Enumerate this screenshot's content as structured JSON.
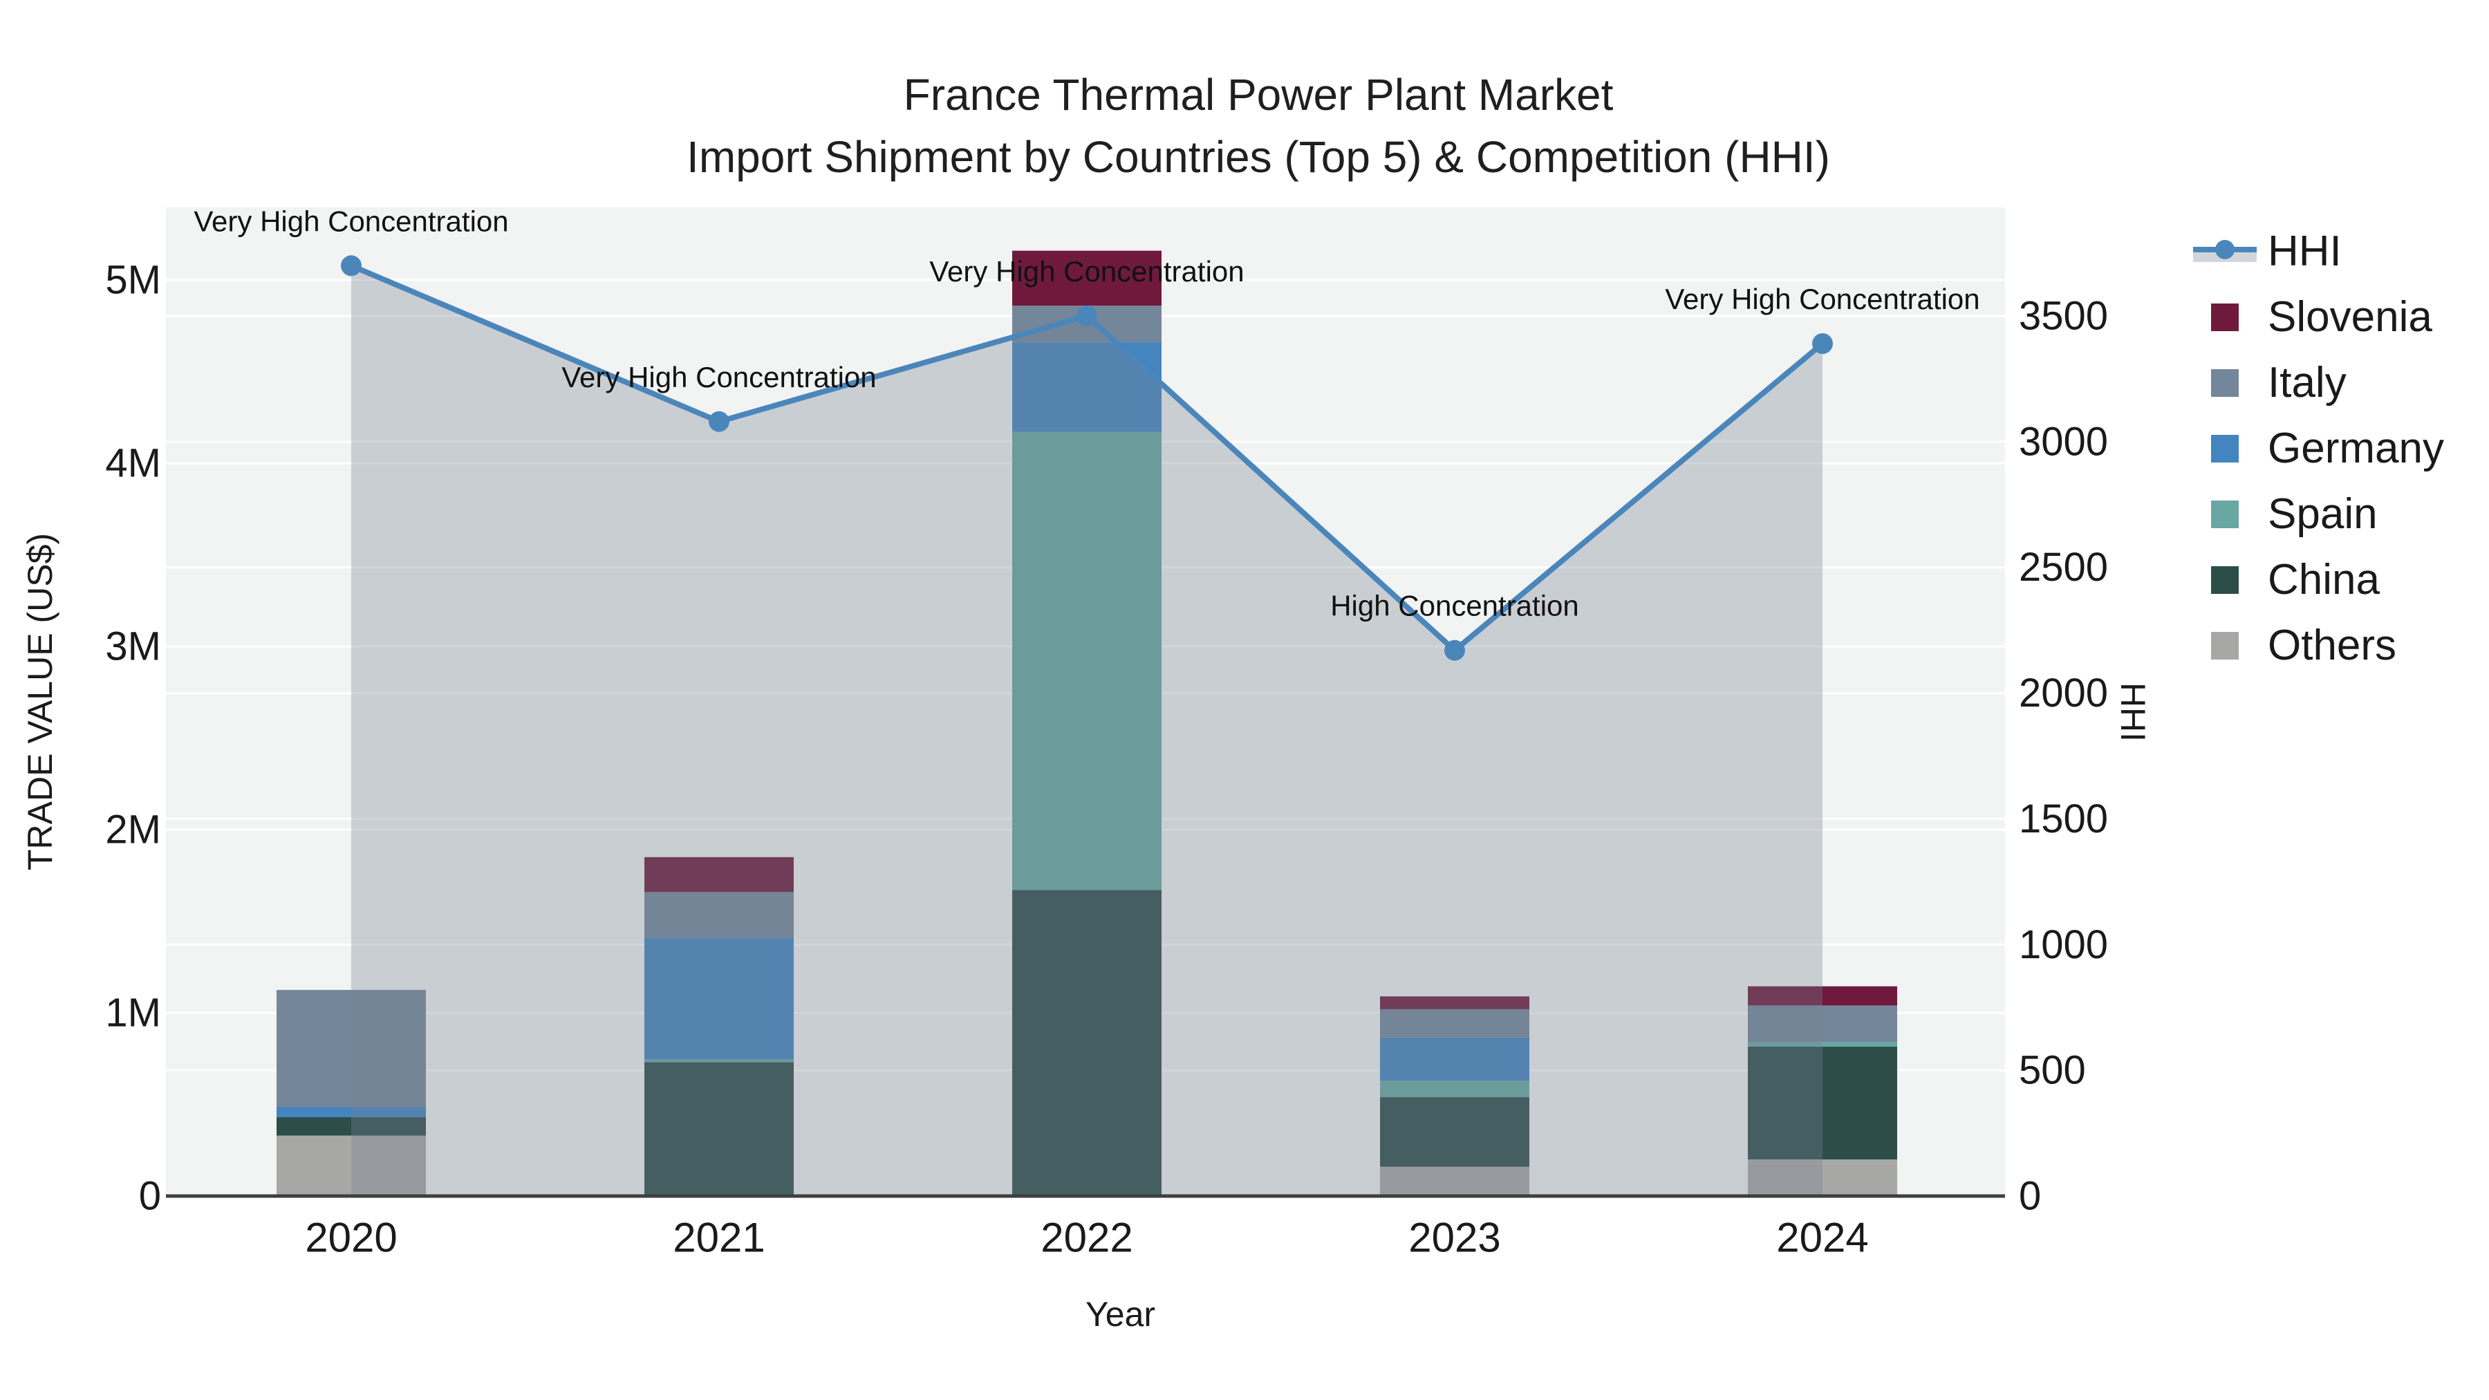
{
  "title": {
    "line1": "France Thermal Power Plant Market",
    "line2": "Import Shipment by Countries (Top 5) & Competition (HHI)"
  },
  "colors": {
    "plot_bg": "#f2f3f3",
    "grid": "#ffffff",
    "axis_line": "#3f3f3f",
    "text": "#1a1a1a",
    "annotation_text": "#111111",
    "line": "#4b86bb",
    "area_fill": "rgba(119,131,146,0.33)",
    "area_fill_opaque": "#d2d6db"
  },
  "chart_data": {
    "type": "combo: stacked bar (left axis) + line with area fill (right axis)",
    "categories": [
      "2020",
      "2021",
      "2022",
      "2023",
      "2024"
    ],
    "bar_series_bottom_to_top": [
      {
        "name": "Others",
        "color": "#a7a8a6",
        "values": [
          330000,
          0,
          0,
          160000,
          200000
        ]
      },
      {
        "name": "China",
        "color": "#2d4d49",
        "values": [
          100000,
          730000,
          1670000,
          380000,
          615000
        ]
      },
      {
        "name": "Spain",
        "color": "#68a7a2",
        "values": [
          0,
          15000,
          2500000,
          90000,
          25000
        ]
      },
      {
        "name": "Germany",
        "color": "#4484bf",
        "values": [
          55000,
          665000,
          490000,
          235000,
          0
        ]
      },
      {
        "name": "Italy",
        "color": "#74869a",
        "values": [
          640000,
          250000,
          200000,
          155000,
          200000
        ]
      },
      {
        "name": "Slovenia",
        "color": "#6f1a3c",
        "values": [
          0,
          190000,
          300000,
          70000,
          105000
        ]
      }
    ],
    "line_series": {
      "name": "HHI",
      "color": "#4b86bb",
      "values": [
        3700,
        3080,
        3500,
        2170,
        3390
      ]
    },
    "annotations": [
      {
        "category": "2020",
        "text": "Very High Concentration"
      },
      {
        "category": "2021",
        "text": "Very High Concentration"
      },
      {
        "category": "2022",
        "text": "Very High Concentration"
      },
      {
        "category": "2023",
        "text": "High Concentration"
      },
      {
        "category": "2024",
        "text": "Very High Concentration"
      }
    ],
    "axes": {
      "left": {
        "title": "TRADE VALUE (US$)",
        "tick_labels": [
          "0",
          "1M",
          "2M",
          "3M",
          "4M",
          "5M"
        ],
        "tick_values": [
          0,
          1000000,
          2000000,
          3000000,
          4000000,
          5000000
        ],
        "range": [
          0,
          5400000
        ]
      },
      "right": {
        "title": "HHI",
        "tick_labels": [
          "0",
          "500",
          "1000",
          "1500",
          "2000",
          "2500",
          "3000",
          "3500"
        ],
        "tick_values": [
          0,
          500,
          1000,
          1500,
          2000,
          2500,
          3000,
          3500
        ],
        "range": [
          0,
          3930
        ]
      },
      "x": {
        "title": "Year",
        "grid": false
      }
    },
    "legend": {
      "position": "right",
      "items": [
        {
          "label": "HHI",
          "kind": "line",
          "color": "#4b86bb"
        },
        {
          "label": "Slovenia",
          "kind": "swatch",
          "color": "#6f1a3c"
        },
        {
          "label": "Italy",
          "kind": "swatch",
          "color": "#74869a"
        },
        {
          "label": "Germany",
          "kind": "swatch",
          "color": "#4484bf"
        },
        {
          "label": "Spain",
          "kind": "swatch",
          "color": "#68a7a2"
        },
        {
          "label": "China",
          "kind": "swatch",
          "color": "#2d4d49"
        },
        {
          "label": "Others",
          "kind": "swatch",
          "color": "#a7a8a6"
        }
      ]
    }
  }
}
